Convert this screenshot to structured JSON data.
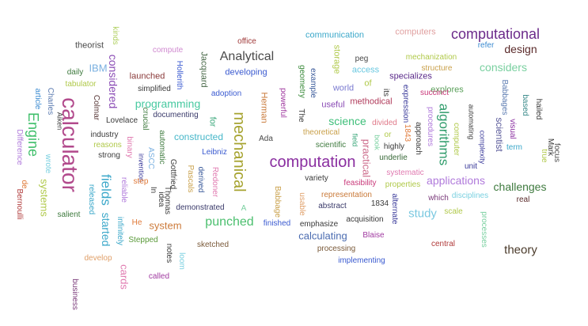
{
  "words": [
    {
      "text": "computational",
      "color": "#6b2a8a"
    },
    {
      "text": "calculator",
      "color": "#b24a8c"
    },
    {
      "text": "mechanical",
      "color": "#a6a32f"
    },
    {
      "text": "computation",
      "color": "#8a2ea0"
    },
    {
      "text": "Engine",
      "color": "#3fbf6a"
    },
    {
      "text": "fields",
      "color": "#3aa7c9"
    },
    {
      "text": "algorithms",
      "color": "#2f9c6b"
    },
    {
      "text": "Analytical",
      "color": "#4a4a4a"
    },
    {
      "text": "punched",
      "color": "#4bbf6e"
    },
    {
      "text": "programming",
      "color": "#47c9a0"
    },
    {
      "text": "considered",
      "color": "#8a4bb5"
    },
    {
      "text": "science",
      "color": "#3fbf7a"
    },
    {
      "text": "study",
      "color": "#7ac8e0"
    },
    {
      "text": "theory",
      "color": "#4a3a2a"
    },
    {
      "text": "challenges",
      "color": "#3e7a3e"
    },
    {
      "text": "applications",
      "color": "#b07adb"
    },
    {
      "text": "design",
      "color": "#5a2a2a"
    },
    {
      "text": "considers",
      "color": "#7ad0a0"
    },
    {
      "text": "system",
      "color": "#cc7a3a"
    },
    {
      "text": "calculating",
      "color": "#4a6bb0"
    },
    {
      "text": "practical",
      "color": "#cc6a8a"
    },
    {
      "text": "started",
      "color": "#3aa7c9"
    },
    {
      "text": "constructed",
      "color": "#47b7c9"
    },
    {
      "text": "scientist",
      "color": "#5a5a9a"
    },
    {
      "text": "systems",
      "color": "#b0c94a"
    },
    {
      "text": "cards",
      "color": "#e07ab0"
    },
    {
      "text": "theorist",
      "color": "#4a4a4a"
    },
    {
      "text": "kinds",
      "color": "#b0d060"
    },
    {
      "text": "compute",
      "color": "#d08ad0"
    },
    {
      "text": "office",
      "color": "#a03a3a"
    },
    {
      "text": "communication",
      "color": "#3aa7c9"
    },
    {
      "text": "computers",
      "color": "#e0a0a0"
    },
    {
      "text": "refer",
      "color": "#3a8ad0"
    },
    {
      "text": "mechanization",
      "color": "#b0c94a"
    },
    {
      "text": "peg",
      "color": "#4a4a4a"
    },
    {
      "text": "storage",
      "color": "#b0c94a"
    },
    {
      "text": "access",
      "color": "#6ac8e0"
    },
    {
      "text": "structure",
      "color": "#c9a04a"
    },
    {
      "text": "IBM",
      "color": "#7ab0e0"
    },
    {
      "text": "daily",
      "color": "#3e7a3e"
    },
    {
      "text": "tabulator",
      "color": "#b0c94a"
    },
    {
      "text": "launched",
      "color": "#8a3a3a"
    },
    {
      "text": "Hollerith",
      "color": "#3a5ad0"
    },
    {
      "text": "Jacquard",
      "color": "#4a6a4a"
    },
    {
      "text": "developing",
      "color": "#3a5ad0"
    },
    {
      "text": "geometry",
      "color": "#3a8a3a"
    },
    {
      "text": "example",
      "color": "#3a5a9a"
    },
    {
      "text": "specializes",
      "color": "#5a2a8a"
    },
    {
      "text": "explores",
      "color": "#5aa05a"
    },
    {
      "text": "Babbages",
      "color": "#5a7ab0"
    },
    {
      "text": "based",
      "color": "#3a8a8a"
    },
    {
      "text": "hailed",
      "color": "#3a3a3a"
    },
    {
      "text": "simplified",
      "color": "#3a3a3a"
    },
    {
      "text": "adoption",
      "color": "#3a5ad0"
    },
    {
      "text": "Herman",
      "color": "#c97a3a"
    },
    {
      "text": "powerful",
      "color": "#a03aa0"
    },
    {
      "text": "The",
      "color": "#3a3a3a"
    },
    {
      "text": "world",
      "color": "#7a7ad0"
    },
    {
      "text": "of",
      "color": "#b0c94a"
    },
    {
      "text": "useful",
      "color": "#8a4bb5"
    },
    {
      "text": "its",
      "color": "#3a3a3a"
    },
    {
      "text": "expression",
      "color": "#3a3a9a"
    },
    {
      "text": "succinct",
      "color": "#c93a7a"
    },
    {
      "text": "methodical",
      "color": "#b03a5a"
    },
    {
      "text": "article",
      "color": "#3a8ad0"
    },
    {
      "text": "Charles",
      "color": "#5a7ab0"
    },
    {
      "text": "Aiken",
      "color": "#3a3a3a"
    },
    {
      "text": "Colmar",
      "color": "#5a3a3a"
    },
    {
      "text": "documenting",
      "color": "#3a3a6a"
    },
    {
      "text": "Lovelace",
      "color": "#3a3a3a"
    },
    {
      "text": "crucial",
      "color": "#3e7a3e"
    },
    {
      "text": "for",
      "color": "#3aa77a"
    },
    {
      "text": "Ada",
      "color": "#4a4a4a"
    },
    {
      "text": "theoretical",
      "color": "#c9a04a"
    },
    {
      "text": "divided",
      "color": "#e07a8a"
    },
    {
      "text": "approach",
      "color": "#3a3a3a"
    },
    {
      "text": "procedures",
      "color": "#b07adb"
    },
    {
      "text": "computer",
      "color": "#b0c94a"
    },
    {
      "text": "automating",
      "color": "#3a3a3a"
    },
    {
      "text": "complexity",
      "color": "#3a3a9a"
    },
    {
      "text": "visual",
      "color": "#8a2ea0"
    },
    {
      "text": "Mark",
      "color": "#3a3a3a"
    },
    {
      "text": "focus",
      "color": "#4a4a4a"
    },
    {
      "text": "term",
      "color": "#3aa7c9"
    },
    {
      "text": "true",
      "color": "#b0c94a"
    },
    {
      "text": "Difference",
      "color": "#b07adb"
    },
    {
      "text": "wrote",
      "color": "#7ad0e0"
    },
    {
      "text": "industry",
      "color": "#3a3a3a"
    },
    {
      "text": "reasons",
      "color": "#b0c94a"
    },
    {
      "text": "binary",
      "color": "#e07ab0"
    },
    {
      "text": "automatic",
      "color": "#3e7a3e"
    },
    {
      "text": "ASCC",
      "color": "#7ab0e0"
    },
    {
      "text": "invention",
      "color": "#3a3a9a"
    },
    {
      "text": "strong",
      "color": "#3a3a3a"
    },
    {
      "text": "scientific",
      "color": "#3e7a3e"
    },
    {
      "text": "field",
      "color": "#3aa77a"
    },
    {
      "text": "book",
      "color": "#7ad0a0"
    },
    {
      "text": "or",
      "color": "#b0c94a"
    },
    {
      "text": "1843",
      "color": "#e07a3a"
    },
    {
      "text": "highly",
      "color": "#3a3a3a"
    },
    {
      "text": "underlie",
      "color": "#3a6a3a"
    },
    {
      "text": "unit",
      "color": "#3a3a9a"
    },
    {
      "text": "Leibniz",
      "color": "#3a5ad0"
    },
    {
      "text": "Gottfried",
      "color": "#3a3a3a"
    },
    {
      "text": "Pascals",
      "color": "#c9a04a"
    },
    {
      "text": "derived",
      "color": "#3a5a9a"
    },
    {
      "text": "Redoner",
      "color": "#e07ab0"
    },
    {
      "text": "A",
      "color": "#7ad0a0"
    },
    {
      "text": "variety",
      "color": "#3a3a3a"
    },
    {
      "text": "feasibility",
      "color": "#c93a7a"
    },
    {
      "text": "systematic",
      "color": "#e07ab0"
    },
    {
      "text": "properties",
      "color": "#b0c94a"
    },
    {
      "text": "alternate",
      "color": "#3a3a9a"
    },
    {
      "text": "which",
      "color": "#7a3a7a"
    },
    {
      "text": "disciplines",
      "color": "#7ad0e0"
    },
    {
      "text": "real",
      "color": "#5a2a2a"
    },
    {
      "text": "de",
      "color": "#e07a3a"
    },
    {
      "text": "Bernoulli",
      "color": "#b03a3a"
    },
    {
      "text": "released",
      "color": "#3aa7c9"
    },
    {
      "text": "reliable",
      "color": "#b07adb"
    },
    {
      "text": "step",
      "color": "#e07a3a"
    },
    {
      "text": "In",
      "color": "#3a3a3a"
    },
    {
      "text": "idea",
      "color": "#3a3a3a"
    },
    {
      "text": "Thomas",
      "color": "#3a3a3a"
    },
    {
      "text": "demonstrated",
      "color": "#3a3a6a"
    },
    {
      "text": "Babbage",
      "color": "#c9a04a"
    },
    {
      "text": "usable",
      "color": "#e0a06a"
    },
    {
      "text": "representation",
      "color": "#c97a3a"
    },
    {
      "text": "abstract",
      "color": "#3a3a6a"
    },
    {
      "text": "1834",
      "color": "#3a3a3a"
    },
    {
      "text": "scale",
      "color": "#b0c94a"
    },
    {
      "text": "processes",
      "color": "#7ad0a0"
    },
    {
      "text": "salient",
      "color": "#3e7a3e"
    },
    {
      "text": "infinitely",
      "color": "#3aa7c9"
    },
    {
      "text": "He",
      "color": "#e07a3a"
    },
    {
      "text": "finished",
      "color": "#3a5ad0"
    },
    {
      "text": "emphasize",
      "color": "#3a3a3a"
    },
    {
      "text": "acquisition",
      "color": "#3a3a3a"
    },
    {
      "text": "Blaise",
      "color": "#a03aa0"
    },
    {
      "text": "Stepped",
      "color": "#5a9a3a"
    },
    {
      "text": "notes",
      "color": "#3a3a3a"
    },
    {
      "text": "sketched",
      "color": "#7a5a3a"
    },
    {
      "text": "loom",
      "color": "#7ad0e0"
    },
    {
      "text": "processing",
      "color": "#7a5a3a"
    },
    {
      "text": "central",
      "color": "#b03a3a"
    },
    {
      "text": "implementing",
      "color": "#3a5ad0"
    },
    {
      "text": "develop",
      "color": "#e0a06a"
    },
    {
      "text": "called",
      "color": "#a03aa0"
    },
    {
      "text": "business",
      "color": "#7a3a7a"
    }
  ]
}
